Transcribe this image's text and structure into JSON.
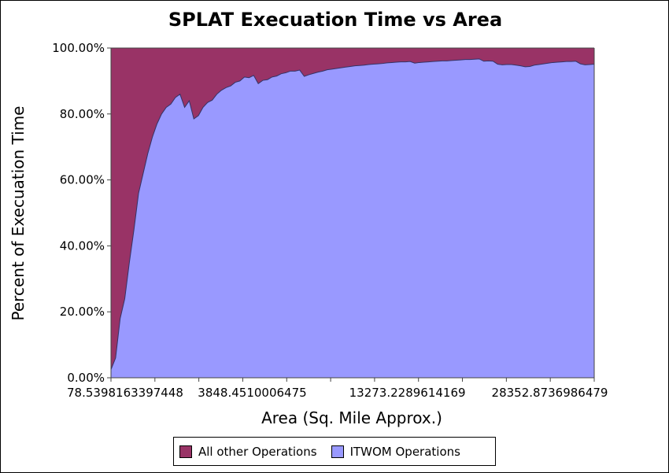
{
  "chart_data": {
    "type": "area",
    "stacked": true,
    "title": "SPLAT Execuation Time vs Area",
    "xlabel": "Area (Sq. Mile Approx.)",
    "ylabel": "Percent of Execuation Time",
    "ylim": [
      0,
      100
    ],
    "y_ticks": [
      "0.00%",
      "20.00%",
      "40.00%",
      "60.00%",
      "80.00%",
      "100.00%"
    ],
    "x_ticks": [
      "78.5398163397448",
      "3848.4510006475",
      "13273.2289614169",
      "28352.8736986479"
    ],
    "grid": false,
    "legend_position": "bottom",
    "series": [
      {
        "name": "ITWOM Operations",
        "color": "#9999ff",
        "values": [
          2.5,
          6,
          18,
          24,
          35,
          45,
          56,
          62,
          68,
          73,
          77,
          80,
          82,
          83,
          85,
          86,
          82,
          84,
          78.5,
          79.5,
          82,
          83.5,
          84.2,
          86,
          87.2,
          88,
          88.5,
          89.6,
          90,
          91.2,
          91,
          91.7,
          89.2,
          90.2,
          90.4,
          91.2,
          91.5,
          92.2,
          92.5,
          93,
          93,
          93.3,
          91.4,
          91.9,
          92.3,
          92.7,
          93,
          93.4,
          93.6,
          93.8,
          94,
          94.2,
          94.4,
          94.6,
          94.7,
          94.8,
          95,
          95.1,
          95.2,
          95.3,
          95.5,
          95.6,
          95.7,
          95.8,
          95.8,
          95.9,
          95.4,
          95.6,
          95.7,
          95.8,
          95.9,
          96,
          96.1,
          96.1,
          96.2,
          96.3,
          96.4,
          96.5,
          96.5,
          96.6,
          96.7,
          96,
          96.1,
          96,
          95.1,
          94.9,
          95,
          95,
          94.8,
          94.6,
          94.3,
          94.4,
          94.8,
          95,
          95.2,
          95.4,
          95.6,
          95.7,
          95.8,
          95.9,
          95.9,
          96,
          95.2,
          94.9,
          95,
          95.1
        ]
      },
      {
        "name": "All other Operations",
        "color": "#993366",
        "values": "remainder to 100%"
      }
    ]
  }
}
